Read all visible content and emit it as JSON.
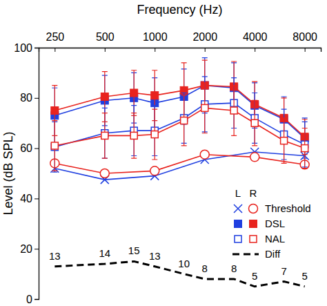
{
  "chart_data": {
    "type": "line",
    "x_label": "Frequency (Hz)",
    "y_label": "Level (dB SPL)",
    "log": "x",
    "xlim": [
      200,
      10000
    ],
    "xticks": [
      250,
      500,
      1000,
      2000,
      4000,
      8000
    ],
    "ylim": [
      0,
      100
    ],
    "yticks": [
      0,
      20,
      40,
      60,
      80,
      100
    ],
    "grid": false,
    "legend": "lower right",
    "series": [
      {
        "name": "Threshold",
        "side": "L",
        "color": "#1f3fe0",
        "marker": "x",
        "line_style": "solid",
        "x": [
          250,
          500,
          1000,
          2000,
          4000,
          8000
        ],
        "values": [
          52,
          47.5,
          49,
          55.5,
          58.5,
          57
        ]
      },
      {
        "name": "Threshold",
        "side": "R",
        "color": "#e8231e",
        "marker": "circle",
        "line_style": "solid",
        "x": [
          250,
          500,
          1000,
          2000,
          4000,
          8000
        ],
        "values": [
          54,
          50,
          51,
          57.5,
          56.5,
          53.5
        ]
      },
      {
        "name": "DSL",
        "side": "L",
        "color": "#1f3fe0",
        "marker": "square",
        "line_style": "solid",
        "x": [
          250,
          500,
          750,
          1000,
          1500,
          2000,
          3000,
          4000,
          6000,
          8000
        ],
        "values": [
          73,
          79,
          80,
          78,
          80.5,
          85,
          84,
          77,
          71.5,
          64
        ],
        "errors": [
          11,
          10,
          10,
          10,
          11,
          11,
          10,
          9,
          9,
          8
        ]
      },
      {
        "name": "DSL",
        "side": "R",
        "color": "#e8231e",
        "marker": "square",
        "line_style": "solid",
        "x": [
          250,
          500,
          750,
          1000,
          1500,
          2000,
          3000,
          4000,
          6000,
          8000
        ],
        "values": [
          75,
          80.5,
          82,
          81,
          83,
          85,
          84.5,
          77.5,
          72,
          64.5
        ],
        "errors": [
          10,
          10,
          9,
          10,
          11,
          10,
          10,
          9,
          8,
          7
        ]
      },
      {
        "name": "NAL",
        "side": "L",
        "color": "#1f3fe0",
        "marker": "square-open",
        "line_style": "solid",
        "x": [
          250,
          500,
          750,
          1000,
          1500,
          2000,
          3000,
          4000,
          6000,
          8000
        ],
        "values": [
          60.5,
          66,
          67,
          67,
          72,
          77.5,
          78,
          72,
          65.5,
          61.5
        ],
        "errors": [
          10,
          10,
          10,
          10,
          10,
          11,
          10,
          10,
          10,
          9
        ]
      },
      {
        "name": "NAL",
        "side": "R",
        "color": "#e8231e",
        "marker": "square-open",
        "line_style": "solid",
        "x": [
          250,
          500,
          750,
          1000,
          1500,
          2000,
          3000,
          4000,
          6000,
          8000
        ],
        "values": [
          61,
          65,
          65,
          65.5,
          71,
          76,
          75,
          70,
          63,
          60
        ],
        "errors": [
          10,
          9,
          9,
          10,
          10,
          10,
          10,
          9,
          9,
          8
        ]
      },
      {
        "name": "Diff",
        "color": "#000000",
        "line_style": "dashed",
        "data_labels": true,
        "x": [
          250,
          500,
          750,
          1000,
          1500,
          2000,
          3000,
          4000,
          6000,
          8000
        ],
        "values": [
          13,
          14,
          15,
          13,
          10,
          8,
          8,
          5,
          7,
          5
        ]
      }
    ]
  }
}
